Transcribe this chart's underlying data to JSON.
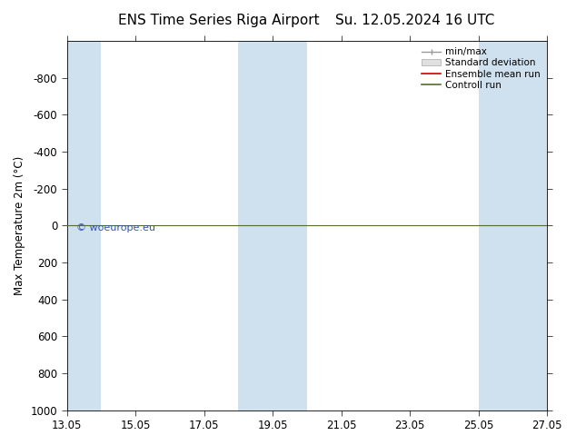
{
  "title_left": "ENS Time Series Riga Airport",
  "title_right": "Su. 12.05.2024 16 UTC",
  "ylabel": "Max Temperature 2m (°C)",
  "ylim_top": -1000,
  "ylim_bottom": 1000,
  "yticks": [
    -800,
    -600,
    -400,
    -200,
    0,
    200,
    400,
    600,
    800,
    1000
  ],
  "xtick_labels": [
    "13.05",
    "15.05",
    "17.05",
    "19.05",
    "21.05",
    "23.05",
    "25.05",
    "27.05"
  ],
  "xtick_positions": [
    0,
    2,
    4,
    6,
    8,
    10,
    12,
    14
  ],
  "background_color": "#ffffff",
  "plot_bg_color": "#ffffff",
  "band_color": "#cfe0ee",
  "legend_labels": [
    "min/max",
    "Standard deviation",
    "Ensemble mean run",
    "Controll run"
  ],
  "legend_colors": [
    "#999999",
    "#cccccc",
    "#cc0000",
    "#556b2f"
  ],
  "watermark": "© woeurope.eu",
  "watermark_color": "#3355aa",
  "font_size": 8.5,
  "title_font_size": 11
}
